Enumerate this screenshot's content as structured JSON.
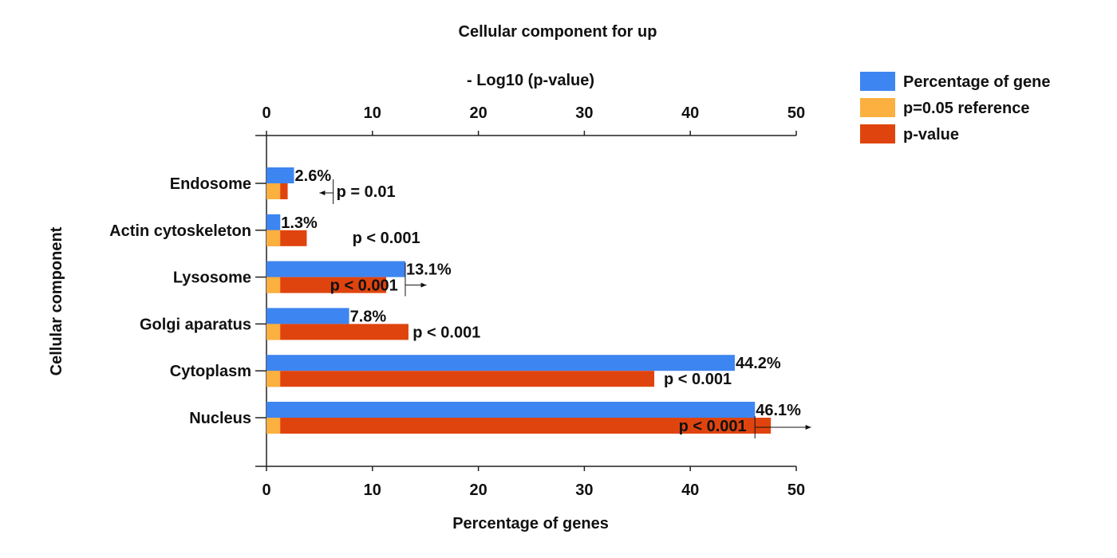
{
  "chart_data": {
    "type": "bar",
    "title": "Cellular component for up",
    "top_axis_label": "- Log10 (p-value)",
    "xlabel": "Percentage of genes",
    "ylabel": "Cellular component",
    "xlim": [
      0,
      50
    ],
    "x_ticks": [
      "0",
      "10",
      "20",
      "30",
      "40",
      "50"
    ],
    "categories": [
      "Endosome",
      "Actin cytoskeleton",
      "Lysosome",
      "Golgi aparatus",
      "Cytoplasm",
      "Nucleus"
    ],
    "series": [
      {
        "name": "Percentage of gene",
        "color": "#3d85f0",
        "values": [
          2.6,
          1.3,
          13.1,
          7.8,
          44.2,
          46.1
        ],
        "labels": [
          "2.6%",
          "1.3%",
          "13.1%",
          "7.8%",
          "44.2%",
          "46.1%"
        ]
      },
      {
        "name": "p=0.05 reference",
        "color": "#fbb040",
        "values": [
          1.3,
          1.3,
          1.3,
          1.3,
          1.3,
          1.3
        ]
      },
      {
        "name": "p-value",
        "color": "#e0440e",
        "values": [
          2.0,
          3.8,
          11.3,
          13.4,
          36.6,
          47.6
        ]
      }
    ],
    "p_labels": [
      "p = 0.01",
      "p < 0.001",
      "p < 0.001",
      "p < 0.001",
      "p < 0.001",
      "p < 0.001"
    ],
    "legend_position": "top-right",
    "grid": false
  }
}
